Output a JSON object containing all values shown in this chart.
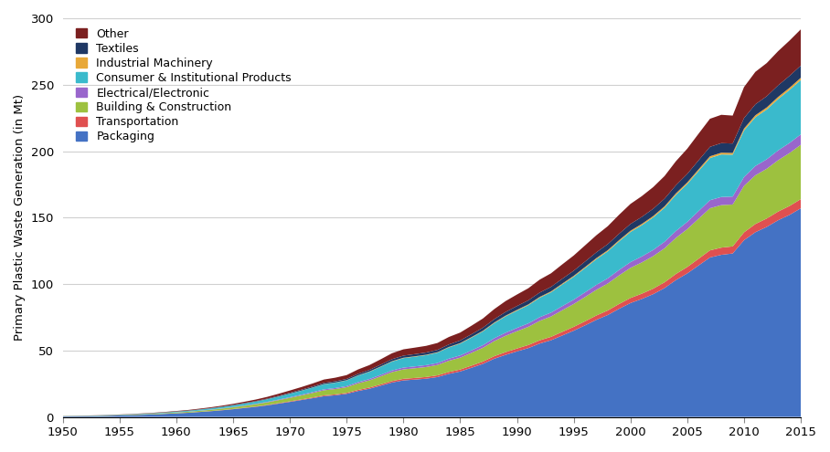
{
  "years": [
    1950,
    1951,
    1952,
    1953,
    1954,
    1955,
    1956,
    1957,
    1958,
    1959,
    1960,
    1961,
    1962,
    1963,
    1964,
    1965,
    1966,
    1967,
    1968,
    1969,
    1970,
    1971,
    1972,
    1973,
    1974,
    1975,
    1976,
    1977,
    1978,
    1979,
    1980,
    1981,
    1982,
    1983,
    1984,
    1985,
    1986,
    1987,
    1988,
    1989,
    1990,
    1991,
    1992,
    1993,
    1994,
    1995,
    1996,
    1997,
    1998,
    1999,
    2000,
    2001,
    2002,
    2003,
    2004,
    2005,
    2006,
    2007,
    2008,
    2009,
    2010,
    2011,
    2012,
    2013,
    2014,
    2015
  ],
  "series": {
    "Packaging": [
      0.4,
      0.5,
      0.6,
      0.7,
      0.9,
      1.1,
      1.3,
      1.6,
      1.9,
      2.3,
      2.7,
      3.1,
      3.7,
      4.3,
      5.0,
      5.8,
      6.7,
      7.6,
      8.7,
      10.0,
      11.3,
      12.7,
      14.1,
      15.6,
      16.3,
      17.4,
      19.5,
      21.2,
      23.5,
      25.9,
      27.5,
      28.1,
      28.8,
      30.0,
      32.4,
      34.2,
      37.0,
      39.9,
      43.8,
      46.7,
      49.3,
      51.8,
      55.2,
      57.7,
      61.3,
      64.9,
      68.9,
      73.1,
      76.7,
      81.4,
      85.7,
      88.8,
      92.4,
      97.0,
      103.0,
      108.0,
      114.0,
      120.0,
      122.0,
      123.0,
      133.0,
      139.0,
      143.0,
      148.0,
      152.0,
      157.0
    ],
    "Transportation": [
      0.01,
      0.01,
      0.02,
      0.02,
      0.02,
      0.03,
      0.04,
      0.04,
      0.05,
      0.06,
      0.08,
      0.09,
      0.11,
      0.13,
      0.16,
      0.19,
      0.22,
      0.26,
      0.31,
      0.36,
      0.42,
      0.48,
      0.55,
      0.62,
      0.66,
      0.7,
      0.81,
      0.89,
      1.0,
      1.11,
      1.18,
      1.22,
      1.25,
      1.3,
      1.41,
      1.48,
      1.61,
      1.74,
      1.9,
      2.06,
      2.18,
      2.29,
      2.45,
      2.57,
      2.73,
      2.88,
      3.07,
      3.25,
      3.41,
      3.61,
      3.81,
      3.95,
      4.12,
      4.31,
      4.57,
      4.8,
      5.07,
      5.34,
      5.4,
      5.32,
      5.9,
      6.18,
      6.32,
      6.52,
      6.72,
      6.9
    ],
    "Building & Construction": [
      0.1,
      0.12,
      0.14,
      0.17,
      0.2,
      0.23,
      0.28,
      0.33,
      0.39,
      0.46,
      0.55,
      0.65,
      0.77,
      0.9,
      1.06,
      1.24,
      1.45,
      1.68,
      1.95,
      2.26,
      2.62,
      2.97,
      3.37,
      3.82,
      4.02,
      4.28,
      4.93,
      5.41,
      6.04,
      6.7,
      7.1,
      7.3,
      7.5,
      7.8,
      8.43,
      8.9,
      9.62,
      10.38,
      11.34,
      12.3,
      13.01,
      13.69,
      14.62,
      15.31,
      16.28,
      17.2,
      18.3,
      19.35,
      20.32,
      21.52,
      22.68,
      23.52,
      24.48,
      25.61,
      27.18,
      28.52,
      30.13,
      31.71,
      32.0,
      31.5,
      35.0,
      36.66,
      37.44,
      38.64,
      39.84,
      40.9
    ],
    "Electrical/Electronic": [
      0.01,
      0.01,
      0.02,
      0.02,
      0.03,
      0.03,
      0.04,
      0.05,
      0.06,
      0.07,
      0.09,
      0.11,
      0.13,
      0.16,
      0.19,
      0.22,
      0.26,
      0.31,
      0.36,
      0.42,
      0.49,
      0.55,
      0.63,
      0.72,
      0.76,
      0.81,
      0.93,
      1.02,
      1.14,
      1.27,
      1.35,
      1.39,
      1.43,
      1.48,
      1.61,
      1.69,
      1.83,
      1.97,
      2.16,
      2.34,
      2.47,
      2.6,
      2.78,
      2.91,
      3.09,
      3.27,
      3.48,
      3.68,
      3.87,
      4.09,
      4.31,
      4.48,
      4.66,
      4.88,
      5.17,
      5.43,
      5.74,
      6.04,
      6.1,
      6.01,
      6.67,
      6.99,
      7.14,
      7.37,
      7.59,
      7.8
    ],
    "Consumer & Institutional Products": [
      0.1,
      0.12,
      0.14,
      0.17,
      0.2,
      0.23,
      0.28,
      0.33,
      0.39,
      0.46,
      0.55,
      0.65,
      0.77,
      0.9,
      1.06,
      1.24,
      1.45,
      1.68,
      1.95,
      2.26,
      2.62,
      2.97,
      3.37,
      3.82,
      4.02,
      4.28,
      4.93,
      5.41,
      6.04,
      6.7,
      7.1,
      7.3,
      7.5,
      7.8,
      8.43,
      8.9,
      9.62,
      10.38,
      11.34,
      12.3,
      13.01,
      13.69,
      14.62,
      15.31,
      16.28,
      17.2,
      18.3,
      19.35,
      20.32,
      21.52,
      22.68,
      23.52,
      24.48,
      25.61,
      27.18,
      28.52,
      30.13,
      31.71,
      32.0,
      31.5,
      35.0,
      36.66,
      37.44,
      38.64,
      39.84,
      40.9
    ],
    "Industrial Machinery": [
      0.004,
      0.005,
      0.006,
      0.007,
      0.008,
      0.009,
      0.011,
      0.013,
      0.016,
      0.019,
      0.022,
      0.027,
      0.031,
      0.037,
      0.044,
      0.051,
      0.06,
      0.07,
      0.081,
      0.094,
      0.109,
      0.123,
      0.14,
      0.159,
      0.168,
      0.179,
      0.206,
      0.226,
      0.252,
      0.28,
      0.297,
      0.305,
      0.313,
      0.325,
      0.352,
      0.371,
      0.401,
      0.433,
      0.473,
      0.514,
      0.543,
      0.571,
      0.61,
      0.638,
      0.679,
      0.717,
      0.763,
      0.807,
      0.847,
      0.897,
      0.945,
      0.98,
      1.021,
      1.069,
      1.134,
      1.19,
      1.258,
      1.324,
      1.337,
      1.317,
      1.462,
      1.531,
      1.565,
      1.615,
      1.664,
      1.709
    ],
    "Textiles": [
      0.02,
      0.02,
      0.03,
      0.03,
      0.04,
      0.05,
      0.06,
      0.07,
      0.08,
      0.1,
      0.12,
      0.14,
      0.17,
      0.2,
      0.23,
      0.27,
      0.32,
      0.37,
      0.43,
      0.5,
      0.58,
      0.66,
      0.75,
      0.85,
      0.9,
      0.96,
      1.1,
      1.21,
      1.35,
      1.5,
      1.59,
      1.64,
      1.68,
      1.75,
      1.89,
      1.99,
      2.16,
      2.33,
      2.54,
      2.76,
      2.92,
      3.07,
      3.28,
      3.43,
      3.65,
      3.86,
      4.11,
      4.34,
      4.56,
      4.83,
      5.09,
      5.28,
      5.5,
      5.75,
      6.1,
      6.4,
      6.77,
      7.12,
      7.19,
      7.09,
      7.87,
      8.24,
      8.42,
      8.69,
      8.95,
      9.19
    ],
    "Other": [
      0.06,
      0.08,
      0.09,
      0.11,
      0.13,
      0.15,
      0.18,
      0.22,
      0.26,
      0.3,
      0.36,
      0.43,
      0.51,
      0.6,
      0.7,
      0.82,
      0.96,
      1.12,
      1.3,
      1.51,
      1.75,
      1.98,
      2.25,
      2.55,
      2.69,
      2.86,
      3.29,
      3.61,
      4.03,
      4.47,
      4.74,
      4.88,
      5.0,
      5.2,
      5.62,
      5.93,
      6.41,
      6.91,
      7.56,
      8.2,
      8.66,
      9.11,
      9.73,
      10.19,
      10.83,
      11.44,
      12.17,
      12.86,
      13.51,
      14.31,
      15.08,
      15.64,
      16.28,
      17.04,
      18.09,
      18.98,
      20.06,
      21.12,
      21.32,
      21.01,
      23.33,
      24.43,
      24.96,
      25.76,
      26.54,
      27.27
    ]
  },
  "colors": {
    "Packaging": "#4472C4",
    "Transportation": "#E05050",
    "Building & Construction": "#9DC13F",
    "Electrical/Electronic": "#9966CC",
    "Consumer & Institutional Products": "#3ABACC",
    "Industrial Machinery": "#E8A838",
    "Textiles": "#1F3864",
    "Other": "#7B2020"
  },
  "ylabel": "Primary Plastic Waste Generation (in Mt)",
  "xlim": [
    1950,
    2015
  ],
  "ylim": [
    0,
    300
  ],
  "yticks": [
    0,
    50,
    100,
    150,
    200,
    250,
    300
  ],
  "xticks": [
    1950,
    1955,
    1960,
    1965,
    1970,
    1975,
    1980,
    1985,
    1990,
    1995,
    2000,
    2005,
    2010,
    2015
  ],
  "background_color": "#ffffff",
  "grid_color": "#d0d0d0",
  "legend_order": [
    "Other",
    "Textiles",
    "Industrial Machinery",
    "Consumer & Institutional Products",
    "Electrical/Electronic",
    "Building & Construction",
    "Transportation",
    "Packaging"
  ],
  "stack_order": [
    "Packaging",
    "Transportation",
    "Building & Construction",
    "Electrical/Electronic",
    "Consumer & Institutional Products",
    "Industrial Machinery",
    "Textiles",
    "Other"
  ]
}
